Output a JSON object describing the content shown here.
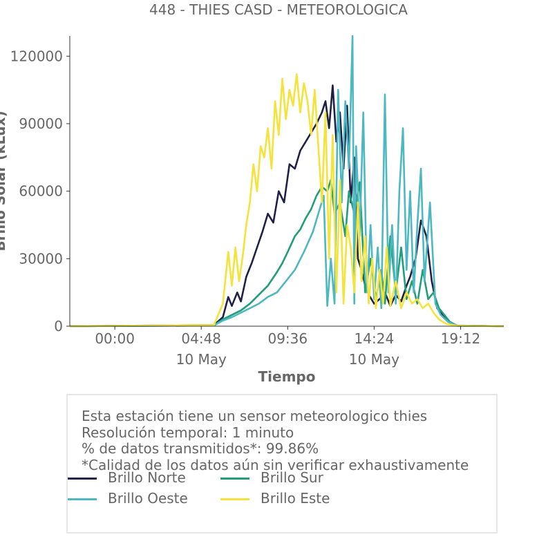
{
  "title": "448 - THIES CASD - METEOROLOGICA",
  "chart_data": {
    "type": "line",
    "title": "448 - THIES CASD - METEOROLOGICA",
    "xlabel": "Tiempo",
    "ylabel": "Brillo Solar (kLux)",
    "x_ticks": [
      "00:00",
      "04:48",
      "09:36",
      "14:24",
      "19:12"
    ],
    "x_tick_sublabels": [
      "",
      "10 May",
      "",
      "10 May",
      ""
    ],
    "x_range_hours": [
      -2.5,
      21.6
    ],
    "y_ticks": [
      0,
      30000,
      60000,
      90000,
      120000
    ],
    "ylim": [
      0,
      129000
    ],
    "grid": false,
    "series": [
      {
        "name": "Brillo Norte",
        "color": "#1f1f47",
        "x": [
          -2.5,
          5.5,
          6.0,
          6.3,
          6.5,
          6.8,
          7.0,
          7.3,
          7.6,
          7.9,
          8.2,
          8.5,
          8.8,
          9.1,
          9.4,
          9.7,
          10.0,
          10.3,
          10.6,
          10.9,
          11.2,
          11.5,
          11.7,
          11.9,
          12.1,
          12.3,
          12.5,
          12.7,
          12.9,
          13.1,
          13.3,
          13.5,
          13.7,
          13.9,
          14.1,
          14.4,
          14.7,
          15.0,
          15.3,
          15.6,
          15.9,
          16.2,
          16.4,
          16.7,
          17.0,
          17.3,
          17.6,
          17.9,
          18.2,
          18.5,
          19.0,
          21.6
        ],
        "y": [
          0,
          500,
          4000,
          13000,
          9000,
          15000,
          11000,
          22000,
          28000,
          35000,
          42000,
          50000,
          46000,
          60000,
          55000,
          72000,
          70000,
          78000,
          82000,
          86000,
          90000,
          95000,
          100000,
          88000,
          107000,
          82000,
          95000,
          70000,
          98000,
          55000,
          75000,
          30000,
          25000,
          18000,
          14000,
          10000,
          12000,
          15000,
          9000,
          14000,
          11000,
          18000,
          22000,
          30000,
          47000,
          40000,
          20000,
          8000,
          5000,
          2000,
          300,
          0
        ]
      },
      {
        "name": "Brillo Sur",
        "color": "#1f9e79",
        "x": [
          -2.5,
          5.5,
          6.0,
          6.5,
          7.0,
          7.5,
          8.0,
          8.5,
          9.0,
          9.3,
          9.6,
          10.0,
          10.3,
          10.6,
          10.9,
          11.2,
          11.5,
          11.8,
          12.0,
          12.2,
          12.5,
          12.8,
          13.0,
          13.3,
          13.6,
          13.9,
          14.2,
          14.5,
          14.8,
          15.0,
          15.3,
          15.6,
          15.9,
          16.2,
          16.5,
          16.8,
          17.1,
          17.4,
          17.7,
          18.0,
          18.3,
          18.6,
          19.0,
          21.6
        ],
        "y": [
          0,
          300,
          3000,
          5000,
          7000,
          10000,
          14000,
          18000,
          24000,
          28000,
          33000,
          40000,
          43000,
          48000,
          52000,
          58000,
          62000,
          60000,
          65000,
          50000,
          55000,
          40000,
          60000,
          50000,
          64000,
          15000,
          30000,
          12000,
          25000,
          10000,
          40000,
          15000,
          35000,
          12000,
          20000,
          10000,
          25000,
          12000,
          15000,
          8000,
          5000,
          2000,
          200,
          0
        ]
      },
      {
        "name": "Brillo Oeste",
        "color": "#4db8c0",
        "x": [
          -2.5,
          5.5,
          6.0,
          6.5,
          7.0,
          7.5,
          8.0,
          8.5,
          9.0,
          9.5,
          10.0,
          10.5,
          11.0,
          11.3,
          11.6,
          11.8,
          12.0,
          12.2,
          12.4,
          12.6,
          12.8,
          13.0,
          13.2,
          13.3,
          13.4,
          13.6,
          13.8,
          14.0,
          14.2,
          14.4,
          14.6,
          14.8,
          15.0,
          15.2,
          15.4,
          15.6,
          15.8,
          16.0,
          16.2,
          16.4,
          16.6,
          16.8,
          17.0,
          17.2,
          17.5,
          17.8,
          18.1,
          18.5,
          19.0,
          21.6
        ],
        "y": [
          0,
          300,
          2500,
          4000,
          6000,
          8000,
          10000,
          13000,
          15000,
          20000,
          25000,
          33000,
          42000,
          50000,
          58000,
          9000,
          30000,
          10000,
          105000,
          55000,
          100000,
          70000,
          129000,
          10000,
          80000,
          40000,
          95000,
          15000,
          45000,
          12000,
          35000,
          8000,
          103000,
          15000,
          45000,
          10000,
          60000,
          88000,
          25000,
          60000,
          15000,
          45000,
          70000,
          20000,
          55000,
          10000,
          5000,
          2000,
          200,
          0
        ]
      },
      {
        "name": "Brillo Este",
        "color": "#f4e33a",
        "x": [
          -2.5,
          5.5,
          6.0,
          6.3,
          6.5,
          6.7,
          6.9,
          7.1,
          7.3,
          7.5,
          7.7,
          7.9,
          8.1,
          8.3,
          8.5,
          8.7,
          8.9,
          9.1,
          9.3,
          9.5,
          9.7,
          9.9,
          10.1,
          10.3,
          10.5,
          10.7,
          10.9,
          11.1,
          11.3,
          11.5,
          11.7,
          11.9,
          12.1,
          12.3,
          12.5,
          12.7,
          12.9,
          13.1,
          13.3,
          13.5,
          13.7,
          13.9,
          14.1,
          14.3,
          14.5,
          14.7,
          14.9,
          15.1,
          15.3,
          15.6,
          15.9,
          16.2,
          16.5,
          16.8,
          17.1,
          17.4,
          17.7,
          18.0,
          18.4,
          19.0,
          21.6
        ],
        "y": [
          0,
          500,
          10000,
          33000,
          18000,
          35000,
          20000,
          31000,
          45000,
          55000,
          72000,
          60000,
          80000,
          75000,
          88000,
          70000,
          100000,
          85000,
          110000,
          92000,
          105000,
          98000,
          112000,
          95000,
          108000,
          100000,
          85000,
          105000,
          80000,
          55000,
          95000,
          30000,
          85000,
          15000,
          65000,
          10000,
          45000,
          35000,
          15000,
          55000,
          20000,
          40000,
          10000,
          30000,
          8000,
          25000,
          10000,
          35000,
          9000,
          20000,
          8000,
          15000,
          10000,
          12000,
          8000,
          10000,
          6000,
          3000,
          1000,
          200,
          0
        ]
      }
    ]
  },
  "info": {
    "line1": "Esta estación tiene un sensor meteorologico thies",
    "line2": "Resolución temporal: 1 minuto",
    "line3": "% de datos transmitidos*: 99.86%",
    "line4": "*Calidad de los datos aún sin verificar exhaustivamente"
  },
  "legend": {
    "items": [
      {
        "label": "Brillo Norte",
        "color": "#1f1f47"
      },
      {
        "label": "Brillo Sur",
        "color": "#1f9e79"
      },
      {
        "label": "Brillo Oeste",
        "color": "#4db8c0"
      },
      {
        "label": "Brillo Este",
        "color": "#f4e33a"
      }
    ]
  }
}
